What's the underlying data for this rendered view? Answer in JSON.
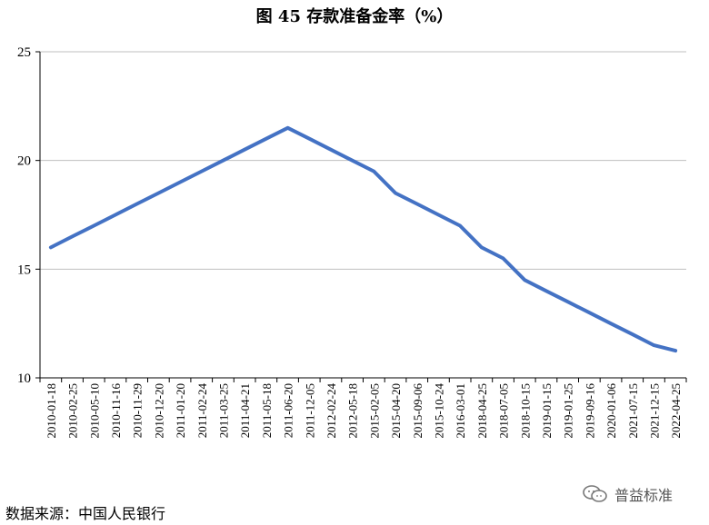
{
  "title": "图 45  存款准备金率（%）",
  "source": "数据来源：中国人民银行",
  "watermark": "普益标准",
  "colors": {
    "line": "#4472c4",
    "grid": "#bfbfbf",
    "axis": "#000000"
  },
  "chart_data": {
    "type": "line",
    "title": "图 45  存款准备金率（%）",
    "xlabel": "",
    "ylabel": "",
    "ylim": [
      10,
      25
    ],
    "yticks": [
      10,
      15,
      20,
      25
    ],
    "grid": true,
    "categories": [
      "2010-01-18",
      "2010-02-25",
      "2010-05-10",
      "2010-11-16",
      "2010-11-29",
      "2010-12-20",
      "2011-01-20",
      "2011-02-24",
      "2011-03-25",
      "2011-04-21",
      "2011-05-18",
      "2011-06-20",
      "2011-12-05",
      "2012-02-24",
      "2012-05-18",
      "2015-02-05",
      "2015-04-20",
      "2015-09-06",
      "2015-10-24",
      "2016-03-01",
      "2018-04-25",
      "2018-07-05",
      "2018-10-15",
      "2019-01-15",
      "2019-01-25",
      "2019-09-16",
      "2020-01-06",
      "2021-07-15",
      "2021-12-15",
      "2022-04-25"
    ],
    "series": [
      {
        "values": [
          16.0,
          16.5,
          17.0,
          17.5,
          18.0,
          18.5,
          19.0,
          19.5,
          20.0,
          20.5,
          21.0,
          21.5,
          21.0,
          20.5,
          20.0,
          19.5,
          18.5,
          18.0,
          17.5,
          17.0,
          16.0,
          15.5,
          14.5,
          14.0,
          13.5,
          13.0,
          12.5,
          12.0,
          11.5,
          11.25
        ]
      }
    ]
  }
}
